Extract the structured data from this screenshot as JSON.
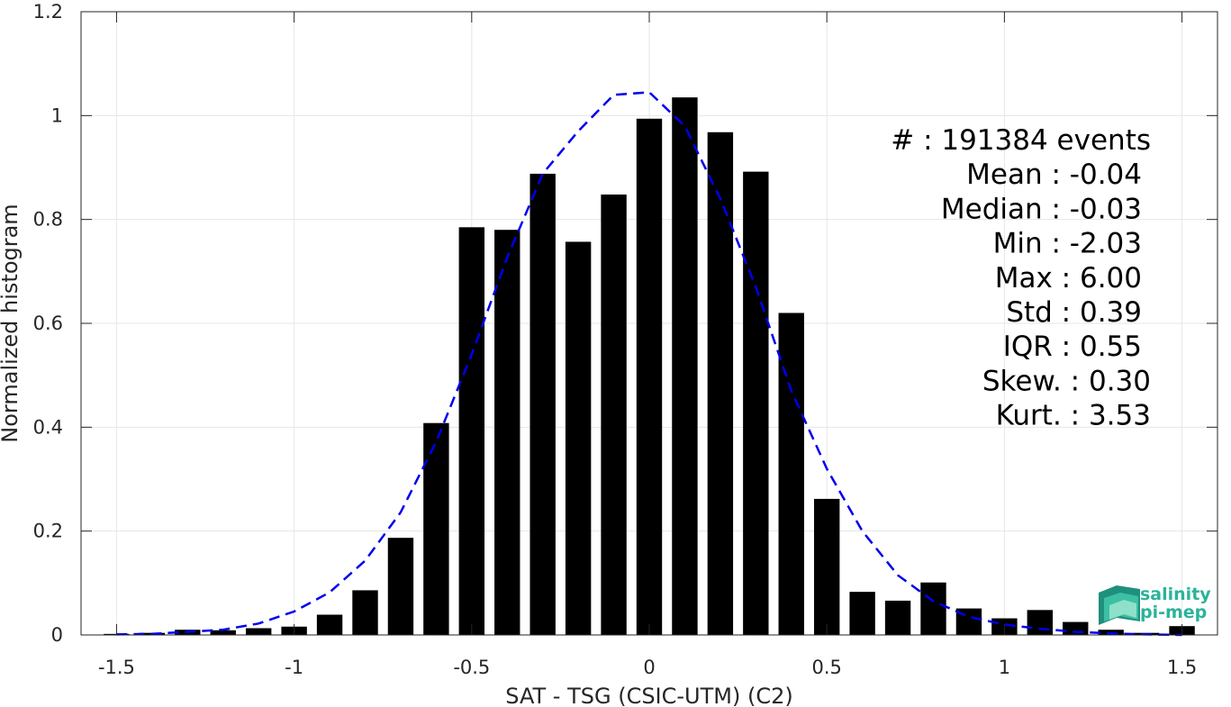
{
  "chart_data": {
    "type": "bar",
    "xlabel": "SAT - TSG (CSIC-UTM) (C2)",
    "ylabel": "Normalized histogram",
    "xlim": [
      -1.6,
      1.6
    ],
    "ylim": [
      0,
      1.2
    ],
    "xticks": [
      -1.5,
      -1,
      -0.5,
      0,
      0.5,
      1,
      1.5
    ],
    "xtick_labels": [
      "-1.5",
      "-1",
      "-0.5",
      "0",
      "0.5",
      "1",
      "1.5"
    ],
    "yticks": [
      0,
      0.2,
      0.4,
      0.6,
      0.8,
      1,
      1.2
    ],
    "ytick_labels": [
      "0",
      "0.2",
      "0.4",
      "0.6",
      "0.8",
      "1",
      "1.2"
    ],
    "grid": true,
    "bar_color": "#000000",
    "fit_color": "#0000ee",
    "bars": {
      "x": [
        -1.5,
        -1.4,
        -1.3,
        -1.2,
        -1.1,
        -1.0,
        -0.9,
        -0.8,
        -0.7,
        -0.6,
        -0.5,
        -0.4,
        -0.3,
        -0.2,
        -0.1,
        0.0,
        0.1,
        0.2,
        0.3,
        0.4,
        0.5,
        0.6,
        0.7,
        0.8,
        0.9,
        1.0,
        1.1,
        1.2,
        1.3,
        1.4,
        1.5
      ],
      "values": [
        0.002,
        0.004,
        0.01,
        0.009,
        0.013,
        0.016,
        0.039,
        0.086,
        0.187,
        0.408,
        0.785,
        0.78,
        0.888,
        0.757,
        0.848,
        0.994,
        1.035,
        0.968,
        0.892,
        0.62,
        0.262,
        0.083,
        0.066,
        0.101,
        0.051,
        0.032,
        0.048,
        0.025,
        0.01,
        0.004,
        0.017
      ]
    },
    "fit": {
      "style": "dashed",
      "x": [
        -1.5,
        -1.4,
        -1.3,
        -1.2,
        -1.1,
        -1.0,
        -0.9,
        -0.8,
        -0.7,
        -0.6,
        -0.5,
        -0.4,
        -0.3,
        -0.2,
        -0.1,
        0.0,
        0.1,
        0.2,
        0.3,
        0.4,
        0.5,
        0.6,
        0.7,
        0.8,
        0.9,
        1.0,
        1.1,
        1.2,
        1.3,
        1.4,
        1.5
      ],
      "y": [
        0.001,
        0.002,
        0.006,
        0.01,
        0.022,
        0.045,
        0.082,
        0.143,
        0.236,
        0.372,
        0.54,
        0.727,
        0.888,
        0.97,
        1.04,
        1.045,
        0.98,
        0.84,
        0.67,
        0.47,
        0.32,
        0.2,
        0.115,
        0.065,
        0.035,
        0.02,
        0.012,
        0.006,
        0.003,
        0.001,
        0.0
      ]
    },
    "stats": [
      {
        "label": "#  : 191384 events"
      },
      {
        "label": "Mean : -0.04"
      },
      {
        "label": "Median : -0.03"
      },
      {
        "label": "Min : -2.03"
      },
      {
        "label": "Max : 6.00"
      },
      {
        "label": "Std : 0.39"
      },
      {
        "label": "IQR : 0.55"
      },
      {
        "label": "Skew. : 0.30"
      },
      {
        "label": "Kurt. : 3.53"
      }
    ]
  },
  "logo": {
    "line1": "salinity",
    "line2": "pi-mep",
    "color": "#2bb39a"
  }
}
